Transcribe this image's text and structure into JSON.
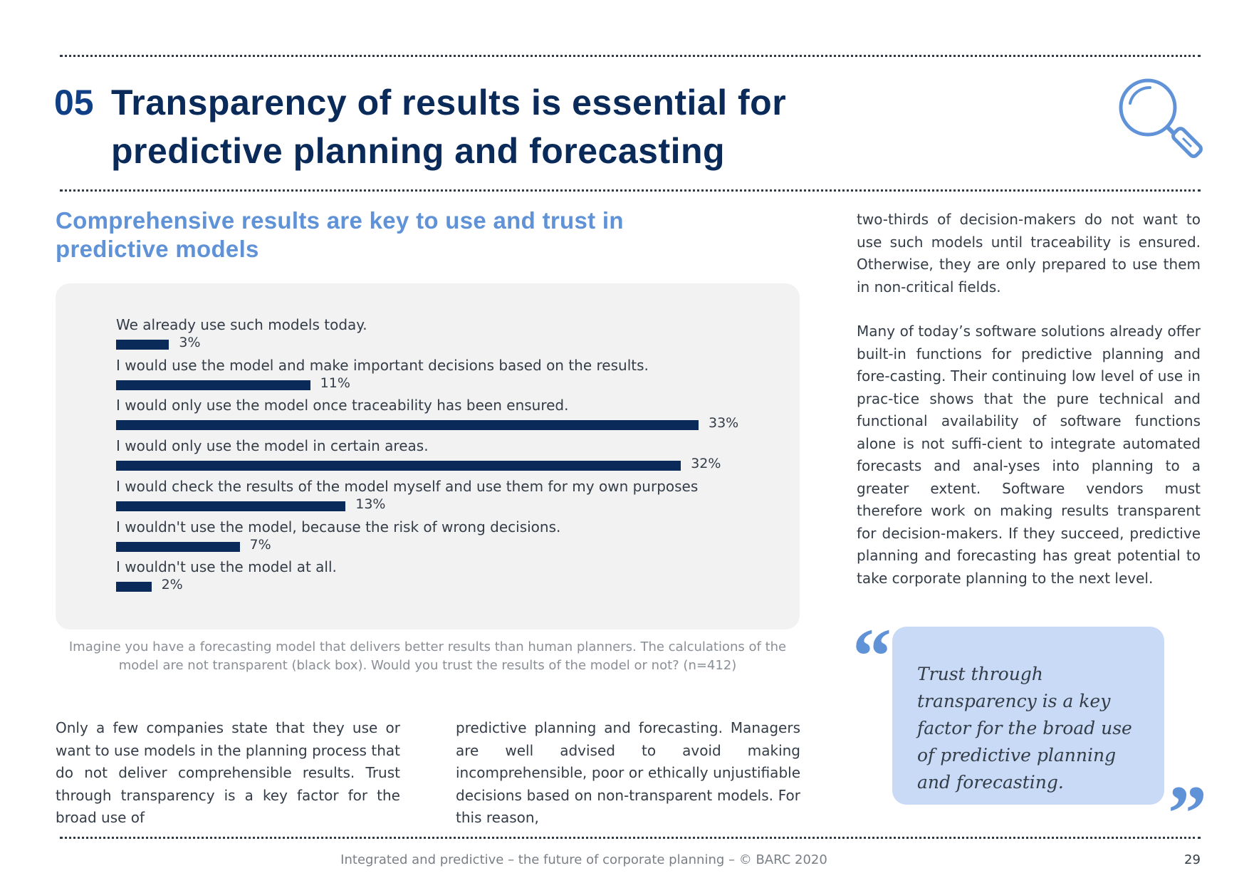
{
  "header": {
    "number": "05",
    "title_line1": "Transparency of results is essential for",
    "title_line2": "predictive planning and forecasting"
  },
  "subheading": "Comprehensive results are key to use and trust in predictive models",
  "chart_data": {
    "type": "bar",
    "orientation": "horizontal",
    "categories": [
      "We already use such models today.",
      "I would use the model and make important decisions based on the results.",
      "I would only use the model once traceability has been ensured.",
      "I would only use the model in certain areas.",
      "I would check the results of the model myself and use them for my own purposes",
      "I wouldn't use the model, because the risk of wrong decisions.",
      "I wouldn't use the model at all."
    ],
    "values": [
      3,
      11,
      33,
      32,
      13,
      7,
      2
    ],
    "value_labels": [
      "3%",
      "11%",
      "33%",
      "32%",
      "13%",
      "7%",
      "2%"
    ],
    "unit": "%",
    "xlim": [
      0,
      33
    ],
    "caption": "Imagine you have a forecasting model that delivers better results than human planners. The calculations of the model are not transparent (black box). Would you trust the results of the model or not? (n=412)"
  },
  "body": {
    "col1": "Only a few companies state that they use or want to use models in the planning process that do not deliver comprehensible results. Trust through transparency is a key factor for the broad use of",
    "col2": "predictive planning and forecasting. Managers are well advised to avoid making incomprehensible, poor or ethically unjustifiable decisions based on non-transparent models. For this reason,",
    "col3_p1": "two-thirds of decision-makers do not want to use such models until traceability is ensured. Otherwise, they are only prepared to use them in non-critical fields.",
    "col3_p2": "Many of today’s software solutions already offer built-in functions for predictive planning and fore-casting. Their continuing low level of use in prac-tice shows that the pure technical and functional availability of software functions alone is not suffi-cient to integrate automated forecasts and anal-yses into planning to a greater extent. Software vendors must therefore work on making results transparent for decision-makers. If they succeed, predictive planning and forecasting has great potential to take corporate planning to the next level."
  },
  "quote": {
    "open_mark": "“",
    "text": "Trust through transparency is a key factor for the broad use of predictive planning and forecasting.",
    "close_mark": "”"
  },
  "footer": {
    "text": "Integrated and predictive – the future of corporate planning  – © BARC 2020",
    "page_number": "29"
  },
  "colors": {
    "bar": "#0a2a5a",
    "accent": "#5f92d6",
    "quote_bg": "#c8daf5",
    "chart_bg": "#f2f2f2"
  }
}
